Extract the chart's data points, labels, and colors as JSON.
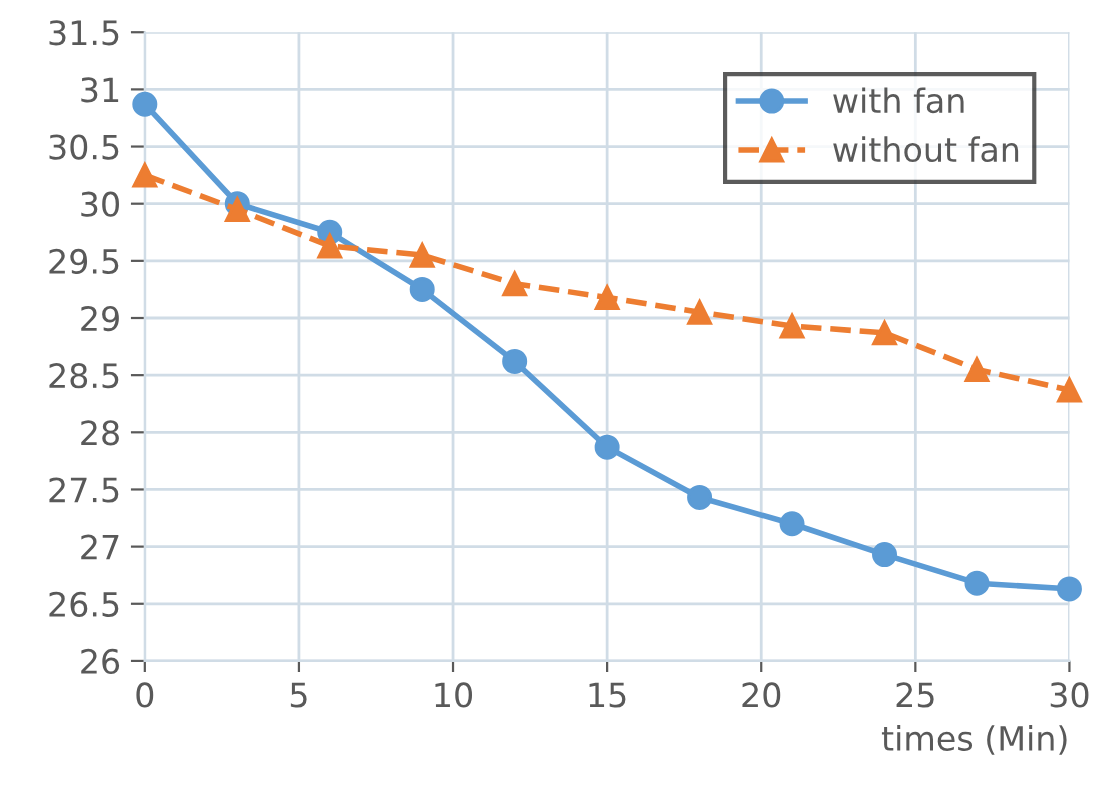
{
  "chart_data": {
    "type": "line",
    "xlabel": "times (Min)",
    "x": [
      0,
      3,
      6,
      9,
      12,
      15,
      18,
      21,
      24,
      27,
      30
    ],
    "series": [
      {
        "name": "with fan",
        "color": "#5b9bd5",
        "marker": "circle",
        "line_style": "solid",
        "values": [
          30.87,
          30.0,
          29.75,
          29.25,
          28.62,
          27.87,
          27.43,
          27.2,
          26.93,
          26.68,
          26.63
        ]
      },
      {
        "name": "without fan",
        "color": "#ed7d31",
        "marker": "triangle",
        "line_style": "dashed",
        "values": [
          30.25,
          29.95,
          29.63,
          29.55,
          29.3,
          29.18,
          29.05,
          28.93,
          28.87,
          28.55,
          28.37
        ]
      }
    ],
    "xlim": [
      0,
      30
    ],
    "xticks": [
      0,
      5,
      10,
      15,
      20,
      25,
      30
    ],
    "ylim": [
      26,
      31.5
    ],
    "yticks": [
      26,
      26.5,
      27,
      27.5,
      28,
      28.5,
      29,
      29.5,
      30,
      30.5,
      31,
      31.5
    ],
    "grid": true,
    "legend": "top right"
  }
}
